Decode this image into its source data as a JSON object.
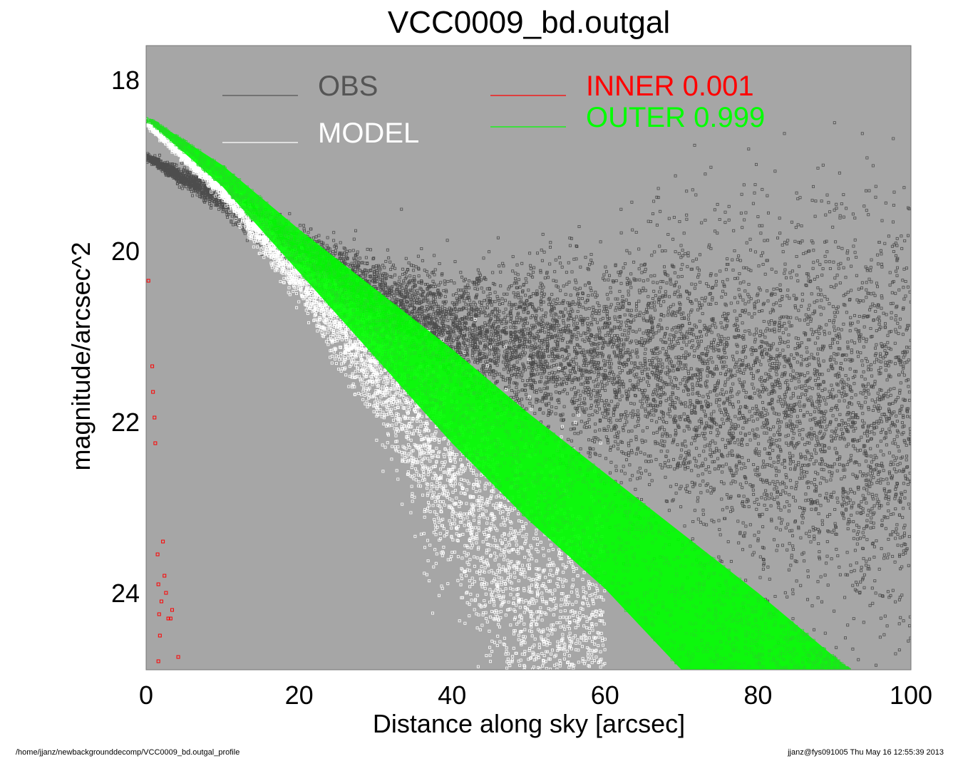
{
  "chart_data": {
    "type": "scatter",
    "title": "VCC0009_bd.outgal",
    "xlabel": "Distance along sky [arcsec]",
    "ylabel": "magnitude/arcsec^2",
    "xlim": [
      0,
      100
    ],
    "ylim": [
      24.9,
      17.6
    ],
    "y_inverted": true,
    "xticks": [
      "0",
      "20",
      "40",
      "60",
      "80",
      "100"
    ],
    "xtick_values": [
      0,
      20,
      40,
      60,
      80,
      100
    ],
    "yticks": [
      "18",
      "20",
      "22",
      "24"
    ],
    "ytick_values": [
      18,
      20,
      22,
      24
    ],
    "plot_background": "#a6a6a6",
    "legend": [
      {
        "label": "OBS",
        "color": "#555555"
      },
      {
        "label": "MODEL",
        "color": "#ffffff"
      },
      {
        "label": "INNER  0.001",
        "color": "#ff0000"
      },
      {
        "label": "OUTER  0.999",
        "color": "#00ff00"
      }
    ],
    "series": [
      {
        "name": "OBS",
        "color": "#4d4d4d",
        "trend": {
          "x": [
            0,
            10,
            20,
            30,
            40,
            50,
            60,
            70,
            80,
            90,
            100
          ],
          "y": [
            18.9,
            19.4,
            20.0,
            20.5,
            20.9,
            21.1,
            21.3,
            21.5,
            21.7,
            21.9,
            22.0
          ]
        },
        "scatter_sigma": [
          0.02,
          0.08,
          0.12,
          0.2,
          0.3,
          0.45,
          0.6,
          0.8,
          1.0,
          1.1,
          1.2
        ]
      },
      {
        "name": "MODEL",
        "color": "#ffffff",
        "trend": {
          "x": [
            0,
            10,
            20,
            30,
            40,
            50,
            60
          ],
          "y": [
            18.5,
            19.3,
            20.3,
            21.4,
            22.7,
            24.0,
            25.0
          ]
        },
        "scatter_sigma": [
          0.02,
          0.05,
          0.15,
          0.3,
          0.6,
          0.9,
          1.1
        ]
      },
      {
        "name": "INNER  0.001",
        "color": "#ff0000",
        "points": [
          [
            0.3,
            20.35
          ],
          [
            0.8,
            21.35
          ],
          [
            0.9,
            21.65
          ],
          [
            1.1,
            21.95
          ],
          [
            1.2,
            22.25
          ],
          [
            1.5,
            23.55
          ],
          [
            1.6,
            23.9
          ],
          [
            1.7,
            24.25
          ],
          [
            1.8,
            24.5
          ],
          [
            2.0,
            24.1
          ],
          [
            2.2,
            23.4
          ],
          [
            2.4,
            23.8
          ],
          [
            2.6,
            24.0
          ],
          [
            2.9,
            24.3
          ],
          [
            3.2,
            24.3
          ],
          [
            3.4,
            24.2
          ],
          [
            4.2,
            24.75
          ],
          [
            1.6,
            24.8
          ]
        ]
      },
      {
        "name": "OUTER  0.999",
        "color": "#00ff00",
        "band": {
          "x": [
            0.5,
            10,
            20,
            30,
            40,
            50,
            60,
            70,
            80,
            92
          ],
          "y_top": [
            18.45,
            19.0,
            19.75,
            20.45,
            21.15,
            21.9,
            22.6,
            23.3,
            24.0,
            24.9
          ],
          "y_bottom": [
            18.5,
            19.25,
            20.25,
            21.25,
            22.25,
            23.15,
            23.95,
            24.9,
            24.9,
            24.9
          ]
        }
      }
    ]
  },
  "footer": {
    "path": "/home/jjanz/newbackgrounddecomp/VCC0009_bd.outgal_profile",
    "stamp": "jjanz@fys091005  Thu May 16 12:55:39 2013"
  }
}
